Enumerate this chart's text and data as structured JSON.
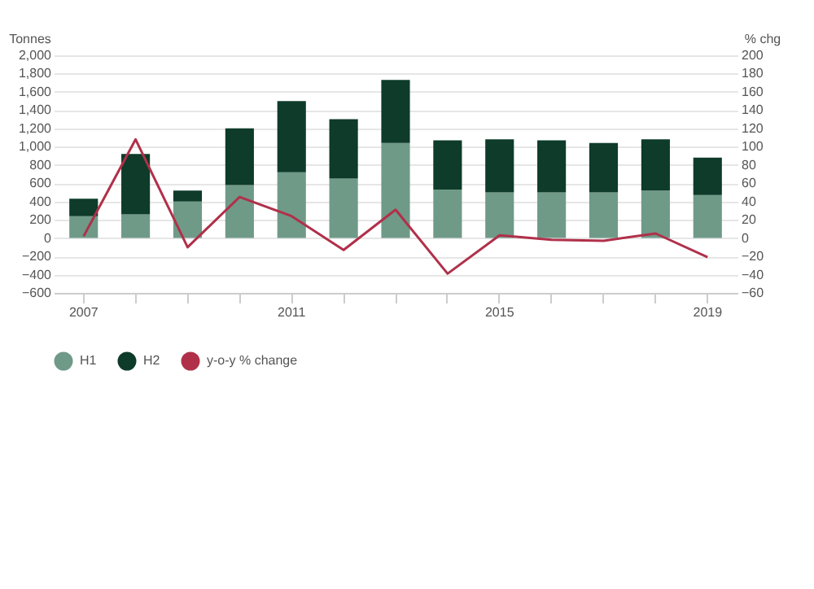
{
  "chart_data": {
    "type": "bar",
    "stacked": true,
    "ylabel": "Tonnes",
    "y2label": "% chg",
    "categories": [
      "2007",
      null,
      null,
      null,
      "2011",
      null,
      null,
      null,
      "2015",
      null,
      null,
      null,
      "2019"
    ],
    "series": [
      {
        "name": "H1",
        "color": "#6f9a88",
        "values": [
          240,
          260,
          400,
          580,
          720,
          650,
          1040,
          530,
          500,
          500,
          500,
          520,
          470
        ]
      },
      {
        "name": "H2",
        "color": "#0e3b2a",
        "values": [
          190,
          660,
          120,
          620,
          780,
          650,
          690,
          540,
          580,
          570,
          540,
          560,
          410
        ]
      },
      {
        "name": "y-o-y % change",
        "type": "line",
        "axis": "y2",
        "color": "#b0304a",
        "values": [
          2,
          108,
          -10,
          45,
          24,
          -13,
          31,
          -39,
          3,
          -2,
          -3,
          5,
          -21
        ]
      }
    ],
    "ylim": [
      -600,
      2000
    ],
    "yticks": [
      -600,
      -400,
      -200,
      0,
      200,
      400,
      600,
      800,
      {
        "value": 1000,
        "label": "1,000"
      },
      {
        "value": 1200,
        "label": "1,200"
      },
      {
        "value": 1400,
        "label": "1,400"
      },
      {
        "value": 1600,
        "label": "1,600"
      },
      {
        "value": 1800,
        "label": "1,800"
      },
      {
        "value": 2000,
        "label": "2,000"
      }
    ],
    "y2lim": [
      -60,
      200
    ],
    "y2ticks": [
      -60,
      -40,
      -20,
      0,
      20,
      40,
      60,
      80,
      100,
      120,
      140,
      160,
      180,
      200
    ],
    "grid": "y",
    "legend": "bottom left"
  }
}
